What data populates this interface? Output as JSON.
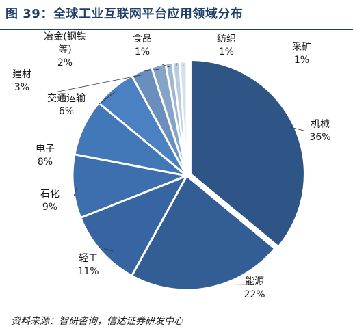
{
  "title": "图 39：全球工业互联网平台应用领域分布",
  "source": "资料来源：智研咨询，信达证券研发中心",
  "chart_data": {
    "type": "pie",
    "title": "",
    "slices": [
      {
        "label": "机械",
        "value": 36,
        "value_label": "36%",
        "color": "#2e5586"
      },
      {
        "label": "能源",
        "value": 22,
        "value_label": "22%",
        "color": "#325d95"
      },
      {
        "label": "轻工",
        "value": 11,
        "value_label": "11%",
        "color": "#3765a1"
      },
      {
        "label": "石化",
        "value": 9,
        "value_label": "9%",
        "color": "#3d6ead"
      },
      {
        "label": "电子",
        "value": 8,
        "value_label": "8%",
        "color": "#4277b8"
      },
      {
        "label": "交通运输",
        "value": 6,
        "value_label": "6%",
        "color": "#4b80c2"
      },
      {
        "label": "建材",
        "value": 3,
        "value_label": "3%",
        "color": "#6a8fbd"
      },
      {
        "label": "冶金(钢铁等)",
        "label_lines": [
          "冶金(钢铁",
          "等)"
        ],
        "value": 2,
        "value_label": "2%",
        "color": "#86a3c8"
      },
      {
        "label": "食品",
        "value": 1,
        "value_label": "1%",
        "color": "#9fb6d4"
      },
      {
        "label": "纺织",
        "value": 1,
        "value_label": "1%",
        "color": "#b9cbe2"
      },
      {
        "label": "采矿",
        "value": 1,
        "value_label": "1%",
        "color": "#d3e0ef"
      }
    ]
  }
}
